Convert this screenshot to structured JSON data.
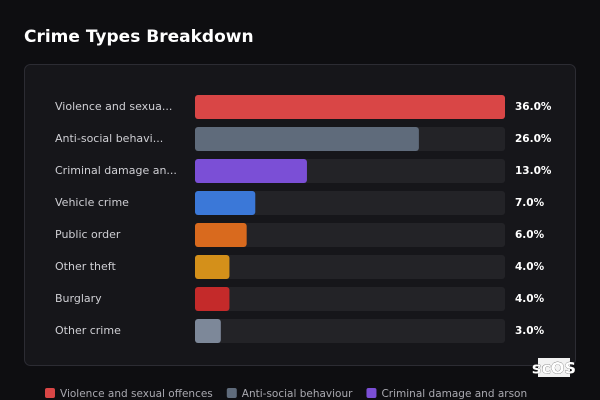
{
  "chart_data": {
    "type": "bar",
    "orientation": "horizontal",
    "title": "Crime Types Breakdown",
    "categories": [
      "Violence and sexua...",
      "Anti-social behavi...",
      "Criminal damage an...",
      "Vehicle crime",
      "Public order",
      "Other theft",
      "Burglary",
      "Other crime"
    ],
    "values": [
      36,
      26,
      13,
      7,
      6,
      4,
      4,
      3
    ],
    "value_labels": [
      "36.0%",
      "26.0%",
      "13.0%",
      "7.0%",
      "6.0%",
      "4.0%",
      "4.0%",
      "3.0%"
    ],
    "colors": [
      "#d94646",
      "#5f6b7b",
      "#7b4fd6",
      "#3b78d8",
      "#d96a1e",
      "#d4901a",
      "#c42a2a",
      "#7d8899"
    ],
    "legend": [
      {
        "name": "Violence and sexual offences",
        "color": "#d94646"
      },
      {
        "name": "Anti-social behaviour",
        "color": "#5f6b7b"
      },
      {
        "name": "Criminal damage and arson",
        "color": "#7b4fd6"
      }
    ]
  },
  "brand": "scOS"
}
